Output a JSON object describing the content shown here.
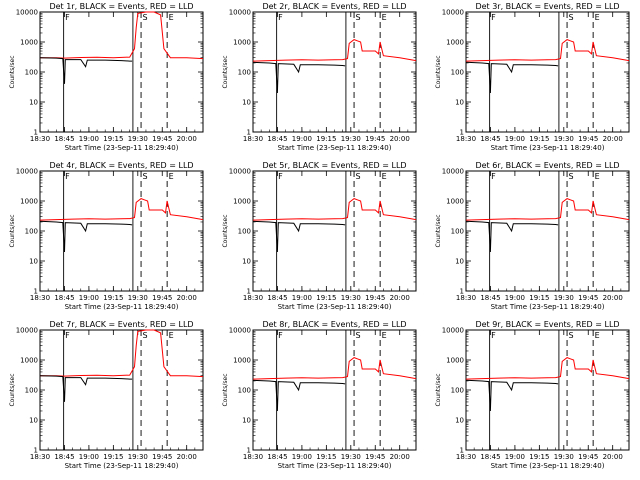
{
  "chart_data": {
    "type": "line",
    "layout": "3x3 grid of panels",
    "y_scale": "log",
    "ylim": [
      1,
      10000
    ],
    "y_tick_labels": [
      "1",
      "10",
      "100",
      "1000",
      "10000"
    ],
    "ylabel": "Counts/sec",
    "xlabel": "Start Time (23-Sep-11 18:29:40)",
    "x_tick_labels": [
      "18:30",
      "18:45",
      "19:00",
      "19:15",
      "19:30",
      "19:45",
      "20:00"
    ],
    "x_tick_minutes": [
      0,
      15,
      30,
      45,
      60,
      75,
      90
    ],
    "xlim_minutes": [
      0,
      100
    ],
    "legend": "BLACK = Events, RED = LLD",
    "series_names": [
      "Events",
      "LLD"
    ],
    "series_colors": {
      "Events": "#000000",
      "LLD": "#ff0000"
    },
    "vertical_markers": [
      {
        "minute": 14.5,
        "style": "solid",
        "label": "F"
      },
      {
        "minute": 57,
        "style": "solid",
        "label": ""
      },
      {
        "minute": 62,
        "style": "dashed",
        "label": "S"
      },
      {
        "minute": 78,
        "style": "dashed",
        "label": "E"
      }
    ],
    "panels": [
      {
        "title": "Det 1r, BLACK = Events, RED = LLD",
        "type": "A"
      },
      {
        "title": "Det 2r, BLACK = Events, RED = LLD",
        "type": "B"
      },
      {
        "title": "Det 3r, BLACK = Events, RED = LLD",
        "type": "B"
      },
      {
        "title": "Det 4r, BLACK = Events, RED = LLD",
        "type": "B"
      },
      {
        "title": "Det 5r, BLACK = Events, RED = LLD",
        "type": "B"
      },
      {
        "title": "Det 6r, BLACK = Events, RED = LLD",
        "type": "B"
      },
      {
        "title": "Det 7r, BLACK = Events, RED = LLD",
        "type": "A"
      },
      {
        "title": "Det 8r, BLACK = Events, RED = LLD",
        "type": "B"
      },
      {
        "title": "Det 9r, BLACK = Events, RED = LLD",
        "type": "B"
      }
    ],
    "profiles": {
      "A": {
        "lld": [
          [
            0,
            300
          ],
          [
            10,
            300
          ],
          [
            15,
            290
          ],
          [
            25,
            305
          ],
          [
            35,
            310
          ],
          [
            45,
            300
          ],
          [
            55,
            315
          ],
          [
            58,
            600
          ],
          [
            59,
            3000
          ],
          [
            60,
            9000
          ],
          [
            65,
            10000
          ],
          [
            70,
            10000
          ],
          [
            74,
            8000
          ],
          [
            76,
            600
          ],
          [
            80,
            300
          ],
          [
            90,
            300
          ],
          [
            100,
            280
          ]
        ],
        "events": [
          [
            0,
            300
          ],
          [
            10,
            290
          ],
          [
            14,
            280
          ],
          [
            15,
            40
          ],
          [
            15.5,
            260
          ],
          [
            25,
            260
          ],
          [
            28,
            150
          ],
          [
            29,
            250
          ],
          [
            40,
            250
          ],
          [
            50,
            240
          ],
          [
            55,
            230
          ],
          [
            56.5,
            230
          ]
        ]
      },
      "B": {
        "lld": [
          [
            0,
            230
          ],
          [
            10,
            240
          ],
          [
            20,
            250
          ],
          [
            30,
            255
          ],
          [
            40,
            250
          ],
          [
            50,
            255
          ],
          [
            55,
            260
          ],
          [
            58,
            280
          ],
          [
            59,
            900
          ],
          [
            62,
            1200
          ],
          [
            64,
            1100
          ],
          [
            66,
            1000
          ],
          [
            67,
            500
          ],
          [
            75,
            500
          ],
          [
            77,
            400
          ],
          [
            78,
            1000
          ],
          [
            80,
            350
          ],
          [
            90,
            300
          ],
          [
            100,
            240
          ]
        ],
        "events": [
          [
            0,
            210
          ],
          [
            10,
            200
          ],
          [
            14,
            190
          ],
          [
            15,
            20
          ],
          [
            15.5,
            190
          ],
          [
            25,
            180
          ],
          [
            28,
            100
          ],
          [
            29,
            175
          ],
          [
            40,
            175
          ],
          [
            50,
            170
          ],
          [
            55,
            165
          ],
          [
            56.5,
            160
          ]
        ]
      }
    }
  }
}
